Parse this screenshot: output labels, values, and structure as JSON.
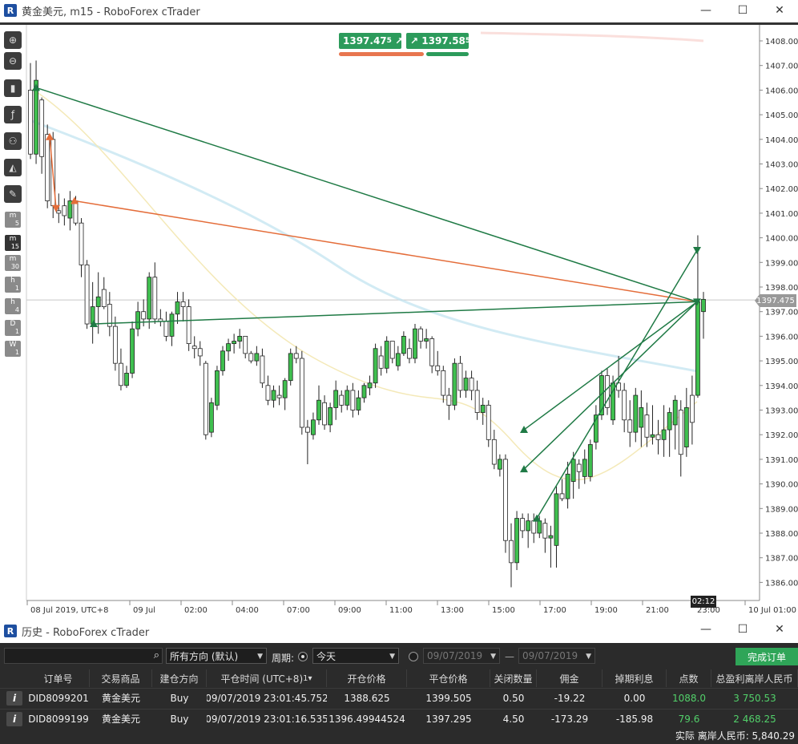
{
  "top_window": {
    "title": "黄金美元, m15 - RoboForex cTrader",
    "controls": [
      "—",
      "☐",
      "✕"
    ]
  },
  "toolbar": {
    "timeframes": [
      {
        "unit": "m",
        "num": "5"
      },
      {
        "unit": "m",
        "num": "15",
        "active": true
      },
      {
        "unit": "m",
        "num": "30"
      },
      {
        "unit": "h",
        "num": "1"
      },
      {
        "unit": "h",
        "num": "4"
      },
      {
        "unit": "D",
        "num": "1"
      },
      {
        "unit": "W",
        "num": "1"
      }
    ]
  },
  "quote": {
    "sell": "1397.47",
    "sell_sup": "5",
    "buy": "1397.58",
    "buy_sup": "5"
  },
  "chart": {
    "current_price": "1397.475",
    "countdown": "02:12",
    "colors": {
      "up": "#3fbf4f",
      "down": "#ffffff",
      "sell": "#e46d3a",
      "buy": "#1f7a45"
    }
  },
  "chart_data": {
    "type": "candlestick",
    "title": "黄金美元, m15",
    "ylim": [
      1385.7,
      1408.6
    ],
    "y_ticks": [
      "1408.000",
      "1407.000",
      "1406.000",
      "1405.000",
      "1404.000",
      "1403.000",
      "1402.000",
      "1401.000",
      "1400.000",
      "1399.000",
      "1398.000",
      "1397.000",
      "1396.000",
      "1395.000",
      "1394.000",
      "1393.000",
      "1392.000",
      "1391.000",
      "1390.000",
      "1389.000",
      "1388.000",
      "1387.000",
      "1386.000"
    ],
    "x_ticks": [
      "08 Jul 2019, UTC+8",
      "09 Jul",
      "02:00",
      "04:00",
      "07:00",
      "09:00",
      "11:00",
      "13:00",
      "15:00",
      "17:00",
      "19:00",
      "21:00",
      "23:00",
      "10 Jul 01:00"
    ],
    "candles": [
      [
        1406.0,
        1407.1,
        1403.2,
        1403.4
      ],
      [
        1403.4,
        1407.2,
        1403.0,
        1406.4
      ],
      [
        1405.6,
        1405.7,
        1402.6,
        1403.3
      ],
      [
        1404.2,
        1404.6,
        1401.2,
        1401.5
      ],
      [
        1404.0,
        1404.3,
        1400.8,
        1401.3
      ],
      [
        1401.1,
        1401.8,
        1400.6,
        1401.0
      ],
      [
        1401.3,
        1401.6,
        1400.5,
        1400.9
      ],
      [
        1400.8,
        1401.9,
        1400.3,
        1401.5
      ],
      [
        1401.5,
        1401.7,
        1400.5,
        1400.6
      ],
      [
        1400.6,
        1400.8,
        1398.4,
        1398.9
      ],
      [
        1398.9,
        1399.1,
        1396.3,
        1396.5
      ],
      [
        1396.5,
        1398.2,
        1395.7,
        1397.2
      ],
      [
        1397.2,
        1398.6,
        1396.1,
        1397.6
      ],
      [
        1397.9,
        1398.4,
        1397.1,
        1397.2
      ],
      [
        1397.3,
        1397.8,
        1396.0,
        1396.4
      ],
      [
        1396.4,
        1396.8,
        1394.6,
        1394.9
      ],
      [
        1394.9,
        1395.5,
        1393.8,
        1394.0
      ],
      [
        1394.0,
        1394.8,
        1393.9,
        1394.5
      ],
      [
        1394.5,
        1396.6,
        1394.3,
        1396.3
      ],
      [
        1396.3,
        1397.4,
        1396.0,
        1397.0
      ],
      [
        1397.0,
        1397.5,
        1396.4,
        1396.7
      ],
      [
        1396.7,
        1398.6,
        1396.3,
        1398.4
      ],
      [
        1398.4,
        1399.0,
        1396.5,
        1396.7
      ],
      [
        1396.7,
        1397.1,
        1396.4,
        1396.6
      ],
      [
        1396.6,
        1397.0,
        1395.8,
        1396.0
      ],
      [
        1396.0,
        1397.0,
        1395.6,
        1396.9
      ],
      [
        1396.9,
        1397.8,
        1396.5,
        1397.4
      ],
      [
        1397.4,
        1397.8,
        1396.6,
        1397.2
      ],
      [
        1397.2,
        1397.5,
        1395.4,
        1395.7
      ],
      [
        1395.6,
        1396.0,
        1395.1,
        1395.5
      ],
      [
        1395.5,
        1395.8,
        1394.8,
        1395.2
      ],
      [
        1394.9,
        1395.0,
        1391.8,
        1392.0
      ],
      [
        1392.1,
        1393.5,
        1391.9,
        1393.3
      ],
      [
        1393.2,
        1394.8,
        1393.0,
        1394.6
      ],
      [
        1394.6,
        1395.6,
        1394.4,
        1395.4
      ],
      [
        1395.4,
        1395.9,
        1395.0,
        1395.7
      ],
      [
        1395.7,
        1396.1,
        1395.3,
        1395.8
      ],
      [
        1395.8,
        1396.3,
        1395.5,
        1396.0
      ],
      [
        1396.0,
        1396.0,
        1395.1,
        1395.3
      ],
      [
        1395.3,
        1395.4,
        1394.9,
        1395.0
      ],
      [
        1395.0,
        1395.6,
        1394.8,
        1395.3
      ],
      [
        1395.2,
        1395.5,
        1393.9,
        1394.1
      ],
      [
        1394.0,
        1394.4,
        1393.2,
        1393.4
      ],
      [
        1393.4,
        1394.0,
        1393.1,
        1393.8
      ],
      [
        1393.6,
        1394.0,
        1393.2,
        1393.5
      ],
      [
        1393.5,
        1394.3,
        1393.0,
        1394.2
      ],
      [
        1394.2,
        1395.5,
        1394.0,
        1395.3
      ],
      [
        1395.3,
        1395.6,
        1394.9,
        1395.1
      ],
      [
        1395.1,
        1395.4,
        1392.0,
        1392.3
      ],
      [
        1392.3,
        1392.6,
        1390.8,
        1392.1
      ],
      [
        1392.0,
        1392.9,
        1391.8,
        1392.6
      ],
      [
        1392.6,
        1394.0,
        1392.4,
        1393.4
      ],
      [
        1393.3,
        1393.6,
        1392.2,
        1392.4
      ],
      [
        1392.4,
        1393.3,
        1392.1,
        1393.1
      ],
      [
        1393.1,
        1394.2,
        1392.6,
        1393.8
      ],
      [
        1393.6,
        1393.8,
        1392.9,
        1393.2
      ],
      [
        1393.2,
        1394.0,
        1393.0,
        1393.8
      ],
      [
        1393.8,
        1394.1,
        1392.7,
        1393.0
      ],
      [
        1393.0,
        1393.8,
        1392.8,
        1393.5
      ],
      [
        1393.5,
        1394.1,
        1393.3,
        1394.0
      ],
      [
        1393.9,
        1394.4,
        1393.6,
        1394.1
      ],
      [
        1394.1,
        1395.7,
        1393.9,
        1395.5
      ],
      [
        1395.2,
        1395.6,
        1394.4,
        1394.7
      ],
      [
        1394.7,
        1396.0,
        1394.5,
        1395.8
      ],
      [
        1395.8,
        1395.8,
        1394.9,
        1395.1
      ],
      [
        1394.8,
        1395.6,
        1394.6,
        1395.3
      ],
      [
        1395.3,
        1396.2,
        1395.2,
        1396.0
      ],
      [
        1395.5,
        1395.9,
        1394.9,
        1395.1
      ],
      [
        1395.1,
        1396.5,
        1394.9,
        1396.3
      ],
      [
        1396.3,
        1396.4,
        1395.5,
        1395.8
      ],
      [
        1395.8,
        1396.3,
        1395.5,
        1395.9
      ],
      [
        1395.9,
        1396.0,
        1394.5,
        1394.8
      ],
      [
        1394.8,
        1395.4,
        1394.4,
        1394.6
      ],
      [
        1394.6,
        1394.8,
        1393.3,
        1393.6
      ],
      [
        1393.6,
        1393.9,
        1392.6,
        1393.2
      ],
      [
        1393.2,
        1395.1,
        1393.0,
        1394.9
      ],
      [
        1394.9,
        1395.2,
        1393.5,
        1393.8
      ],
      [
        1393.8,
        1394.6,
        1393.5,
        1394.3
      ],
      [
        1394.3,
        1394.6,
        1393.4,
        1393.8
      ],
      [
        1393.8,
        1394.2,
        1392.6,
        1392.9
      ],
      [
        1392.9,
        1393.5,
        1392.4,
        1393.2
      ],
      [
        1393.2,
        1393.4,
        1391.5,
        1391.8
      ],
      [
        1391.8,
        1392.2,
        1390.6,
        1390.8
      ],
      [
        1390.6,
        1391.2,
        1390.3,
        1391.0
      ],
      [
        1391.0,
        1391.2,
        1387.2,
        1387.7
      ],
      [
        1387.7,
        1388.4,
        1385.8,
        1386.8
      ],
      [
        1386.8,
        1388.9,
        1386.5,
        1388.6
      ],
      [
        1388.6,
        1388.8,
        1387.8,
        1388.1
      ],
      [
        1388.1,
        1388.8,
        1387.4,
        1388.5
      ],
      [
        1388.5,
        1388.8,
        1387.6,
        1388.0
      ],
      [
        1388.0,
        1388.7,
        1387.8,
        1388.5
      ],
      [
        1388.4,
        1388.6,
        1387.2,
        1387.8
      ],
      [
        1387.8,
        1388.3,
        1386.6,
        1387.9
      ],
      [
        1387.5,
        1389.9,
        1386.6,
        1389.6
      ],
      [
        1389.6,
        1390.2,
        1389.3,
        1389.4
      ],
      [
        1389.4,
        1390.9,
        1389.0,
        1390.4
      ],
      [
        1390.1,
        1391.3,
        1389.4,
        1391.0
      ],
      [
        1390.8,
        1391.0,
        1389.8,
        1390.5
      ],
      [
        1390.3,
        1391.4,
        1390.0,
        1391.0
      ],
      [
        1390.3,
        1391.8,
        1390.1,
        1391.6
      ],
      [
        1391.7,
        1393.2,
        1391.4,
        1392.8
      ],
      [
        1392.8,
        1394.6,
        1392.6,
        1394.4
      ],
      [
        1394.4,
        1394.7,
        1392.8,
        1393.1
      ],
      [
        1392.6,
        1394.4,
        1392.4,
        1394.1
      ],
      [
        1394.1,
        1395.2,
        1393.5,
        1393.8
      ],
      [
        1393.8,
        1394.1,
        1392.1,
        1392.6
      ],
      [
        1392.6,
        1393.4,
        1391.5,
        1392.1
      ],
      [
        1392.1,
        1393.9,
        1391.7,
        1393.6
      ],
      [
        1392.3,
        1393.8,
        1391.5,
        1393.1
      ],
      [
        1392.8,
        1393.3,
        1391.5,
        1391.9
      ],
      [
        1391.9,
        1393.2,
        1391.6,
        1392.0
      ],
      [
        1392.0,
        1392.6,
        1391.2,
        1391.8
      ],
      [
        1391.8,
        1393.2,
        1391.1,
        1392.2
      ],
      [
        1392.2,
        1393.1,
        1391.1,
        1392.9
      ],
      [
        1392.4,
        1393.6,
        1391.4,
        1393.4
      ],
      [
        1393.0,
        1393.4,
        1390.3,
        1391.2
      ],
      [
        1391.5,
        1393.9,
        1391.1,
        1393.1
      ],
      [
        1393.6,
        1394.4,
        1391.6,
        1392.5
      ],
      [
        1393.6,
        1400.1,
        1393.5,
        1397.4
      ],
      [
        1397.0,
        1397.8,
        1395.9,
        1397.5
      ]
    ]
  },
  "history_window": {
    "title": "历史 - RoboForex cTrader",
    "controls": [
      "—",
      "☐",
      "✕"
    ],
    "direction": "所有方向 (默认)",
    "period_label": "周期:",
    "period": "今天",
    "date_from": "09/07/2019",
    "dash": "—",
    "date_to": "09/07/2019",
    "done_button": "完成订单",
    "columns": [
      "订单号",
      "交易商品",
      "建仓方向",
      "平仓时间 (UTC+8)",
      "开仓价格",
      "平仓价格",
      "关闭数量",
      "佣金",
      "掉期利息",
      "点数",
      "总盈利离岸人民币"
    ],
    "badge": "1",
    "rows": [
      [
        "DID8099201",
        "黄金美元",
        "Buy",
        "09/07/2019 23:01:45.752",
        "1388.625",
        "1399.505",
        "0.50",
        "-19.22",
        "0.00",
        "1088.0",
        "3 750.53"
      ],
      [
        "DID8099199",
        "黄金美元",
        "Buy",
        "09/07/2019 23:01:16.535",
        "1396.49944524",
        "1397.295",
        "4.50",
        "-173.29",
        "-185.98",
        "79.6",
        "2 468.25"
      ]
    ],
    "footer": "实际 离岸人民币: 5,840.29"
  }
}
